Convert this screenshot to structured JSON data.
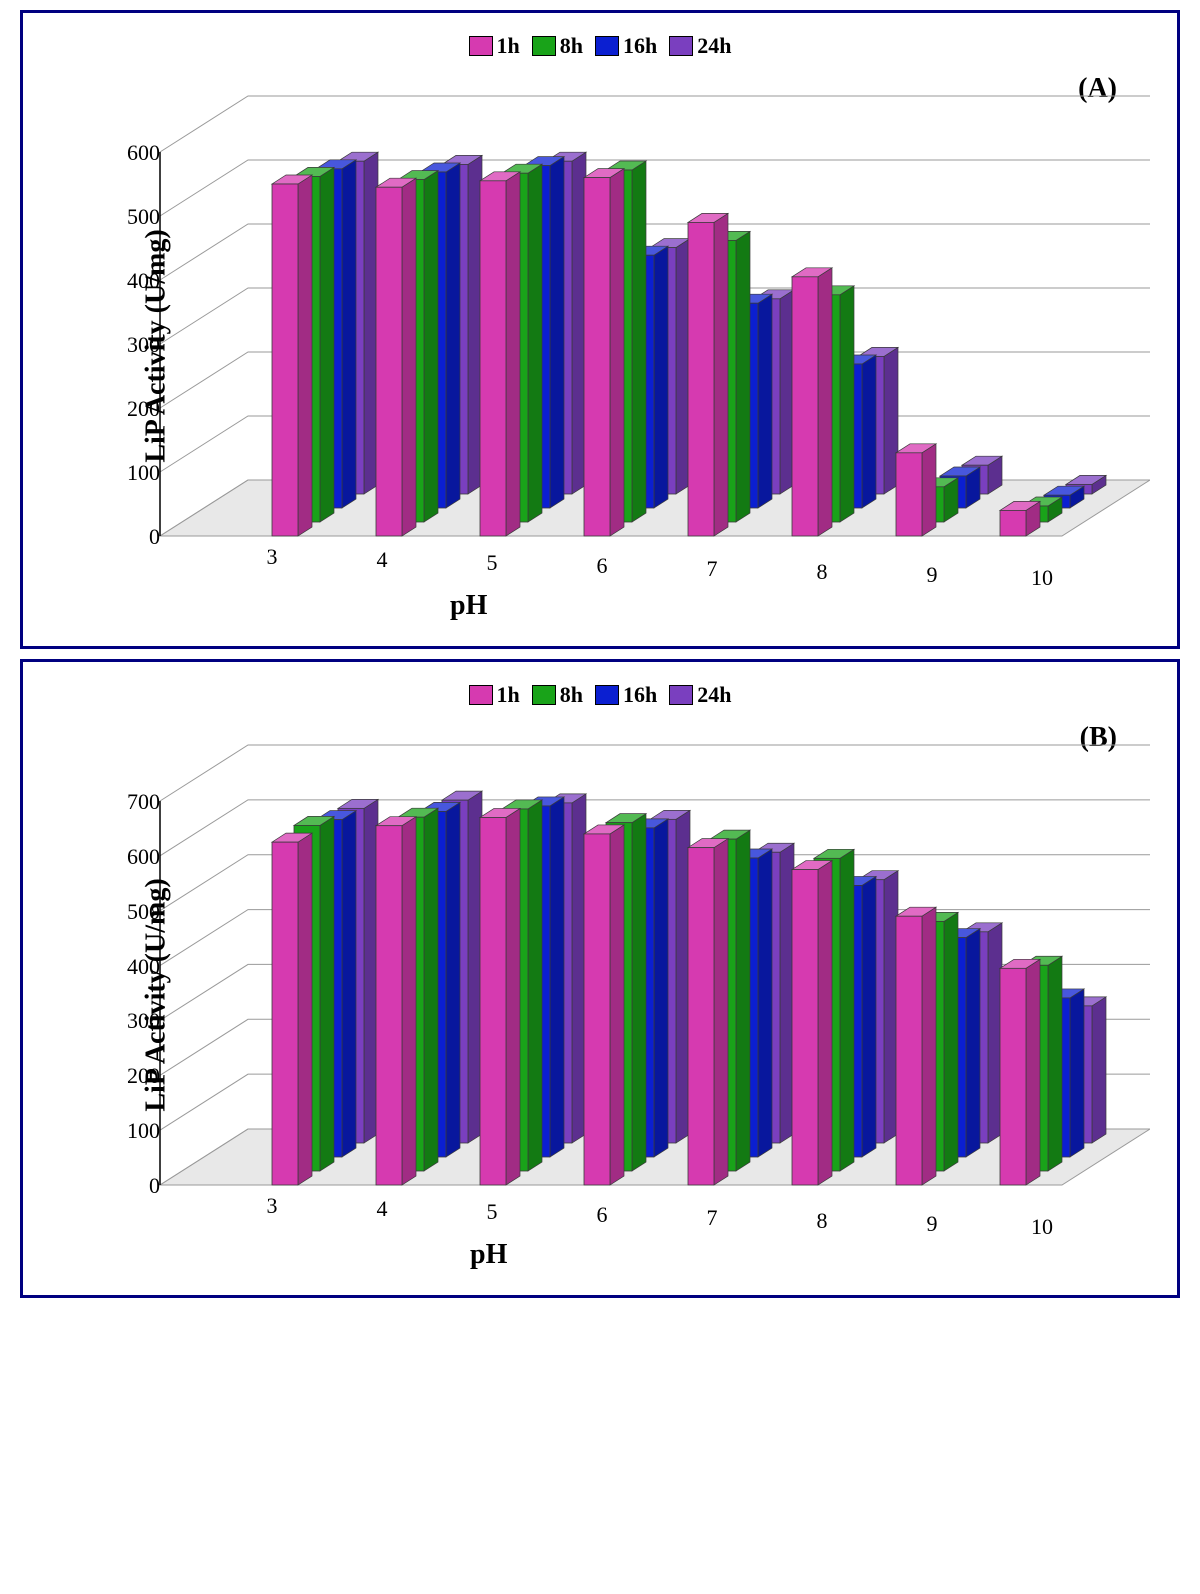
{
  "legend": {
    "items": [
      {
        "label": "1h",
        "fill": "#d63ab0",
        "border": "#000000"
      },
      {
        "label": "8h",
        "fill": "#19a319",
        "border": "#000000"
      },
      {
        "label": "16h",
        "fill": "#0b1fd1",
        "border": "#000000"
      },
      {
        "label": "24h",
        "fill": "#7a3fbf",
        "border": "#000000"
      }
    ]
  },
  "common_style": {
    "font_family": "Times New Roman",
    "axis_title_fontsize": 28,
    "tick_fontsize": 22,
    "legend_fontsize": 22,
    "panel_label_fontsize": 28,
    "bar_border_color": "#3a3a3a",
    "bar_highlight_color": "rgba(255,255,255,0.25)",
    "bar_shade_color": "rgba(0,0,0,0.25)",
    "floor_fill": "#e8e8e8",
    "floor_stroke": "#9a9a9a",
    "backwall_fill": "#ffffff",
    "frame_color": "#000080",
    "depth_dx_per_row": 22,
    "depth_dy_per_row": 14,
    "bar_face_width": 26,
    "bar_depth_dx": 14,
    "bar_depth_dy": 9,
    "group_spacing_front": 104,
    "group_shrink_back": 0.72
  },
  "panelA": {
    "label": "(A)",
    "x_title": "pH",
    "y_title": "LiP Activity  (U/mg)",
    "categories": [
      3,
      4,
      5,
      6,
      7,
      8,
      9,
      10
    ],
    "ylim": [
      0,
      600
    ],
    "ytick_step": 100,
    "series": [
      {
        "name": "1h",
        "color": "#d63ab0",
        "values": [
          550,
          545,
          555,
          560,
          490,
          405,
          130,
          40
        ]
      },
      {
        "name": "8h",
        "color": "#19a319",
        "values": [
          540,
          535,
          545,
          550,
          440,
          355,
          55,
          25
        ]
      },
      {
        "name": "16h",
        "color": "#0b1fd1",
        "values": [
          530,
          525,
          535,
          395,
          320,
          225,
          50,
          20
        ]
      },
      {
        "name": "24h",
        "color": "#7a3fbf",
        "values": [
          520,
          515,
          520,
          385,
          305,
          215,
          45,
          15
        ]
      }
    ]
  },
  "panelB": {
    "label": "(B)",
    "x_title": "pH",
    "y_title": "LiP Activity  (U/mg)",
    "categories": [
      3,
      4,
      5,
      6,
      7,
      8,
      9,
      10
    ],
    "ylim": [
      0,
      700
    ],
    "ytick_step": 100,
    "series": [
      {
        "name": "1h",
        "color": "#d63ab0",
        "values": [
          625,
          655,
          670,
          640,
          615,
          575,
          490,
          395
        ]
      },
      {
        "name": "8h",
        "color": "#19a319",
        "values": [
          630,
          645,
          660,
          635,
          605,
          570,
          455,
          375
        ]
      },
      {
        "name": "16h",
        "color": "#0b1fd1",
        "values": [
          615,
          630,
          640,
          600,
          545,
          495,
          400,
          290
        ]
      },
      {
        "name": "24h",
        "color": "#7a3fbf",
        "values": [
          610,
          625,
          620,
          590,
          530,
          480,
          385,
          250
        ]
      }
    ]
  }
}
